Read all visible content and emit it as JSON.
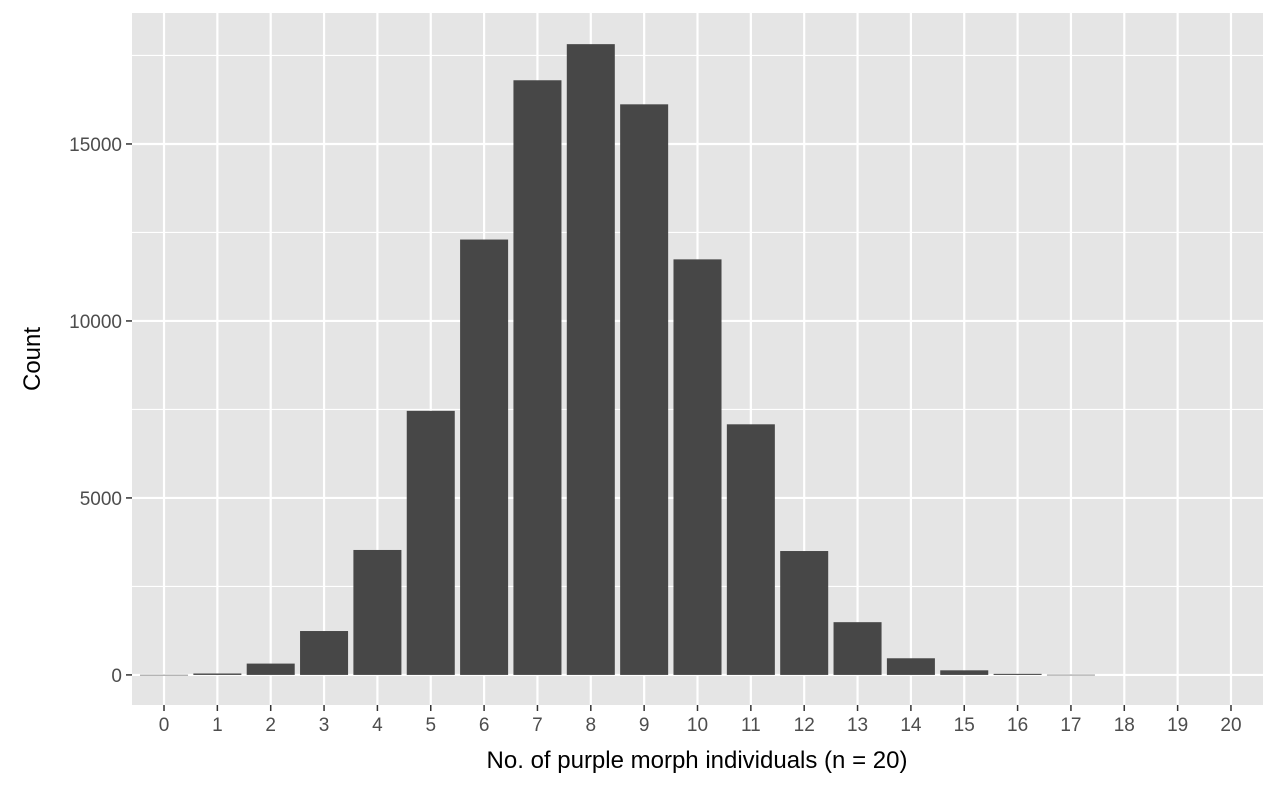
{
  "chart_data": {
    "type": "bar",
    "title": "",
    "xlabel": "No. of purple morph individuals (n = 20)",
    "ylabel": "Count",
    "categories": [
      "0",
      "1",
      "2",
      "3",
      "4",
      "5",
      "6",
      "7",
      "8",
      "9",
      "10",
      "11",
      "12",
      "13",
      "14",
      "15",
      "16",
      "17",
      "18",
      "19",
      "20"
    ],
    "values": [
      3,
      40,
      320,
      1240,
      3530,
      7460,
      12300,
      16800,
      17820,
      16120,
      11740,
      7080,
      3500,
      1490,
      470,
      130,
      30,
      5,
      0,
      0,
      0
    ],
    "ylim": [
      -850,
      18700
    ],
    "yticks": [
      0,
      5000,
      10000,
      15000
    ],
    "yminor": [
      2500,
      7500,
      12500,
      17500
    ],
    "grid": true,
    "legend": "none",
    "colors": {
      "panel": "#e5e5e5",
      "grid": "#ffffff",
      "bar": "#474747",
      "tick_text": "#4d4d4d",
      "tick_mark": "#333333"
    }
  }
}
